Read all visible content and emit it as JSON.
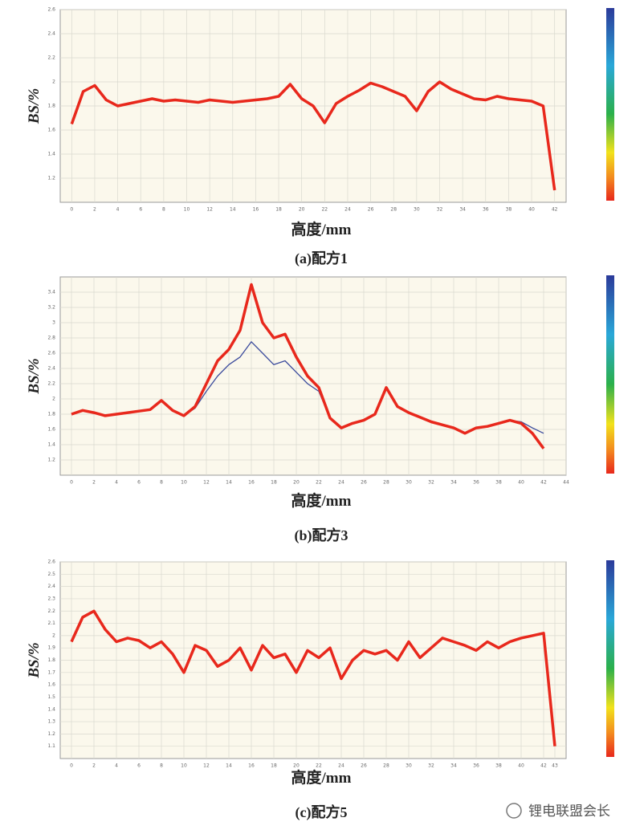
{
  "chart_data": [
    {
      "type": "line",
      "xlabel": "高度/mm",
      "ylabel": "BS/%",
      "caption": "(a)配方1",
      "x": [
        0,
        1,
        2,
        3,
        4,
        5,
        6,
        7,
        8,
        9,
        10,
        11,
        12,
        13,
        14,
        15,
        16,
        17,
        18,
        19,
        20,
        21,
        22,
        23,
        24,
        25,
        26,
        27,
        28,
        29,
        30,
        31,
        32,
        33,
        34,
        35,
        36,
        37,
        38,
        39,
        40,
        41,
        42
      ],
      "series": [
        {
          "color": "#e8281c",
          "values": [
            1.65,
            1.92,
            1.97,
            1.85,
            1.8,
            1.82,
            1.84,
            1.86,
            1.84,
            1.85,
            1.84,
            1.83,
            1.85,
            1.84,
            1.83,
            1.84,
            1.85,
            1.86,
            1.88,
            1.98,
            1.86,
            1.8,
            1.66,
            1.82,
            1.88,
            1.93,
            1.99,
            1.96,
            1.92,
            1.88,
            1.76,
            1.92,
            2.0,
            1.94,
            1.9,
            1.86,
            1.85,
            1.88,
            1.86,
            1.85,
            1.84,
            1.8,
            1.1
          ]
        }
      ],
      "xlim": [
        -1,
        43
      ],
      "ylim": [
        1.0,
        2.6
      ],
      "xticks": [
        0,
        2,
        4,
        6,
        8,
        10,
        12,
        14,
        16,
        18,
        20,
        22,
        24,
        26,
        28,
        30,
        32,
        34,
        36,
        38,
        40,
        42
      ],
      "yticks": [
        1.2,
        1.4,
        1.6,
        1.8,
        2.0,
        2.2,
        2.4,
        2.6
      ],
      "grid": true
    },
    {
      "type": "line",
      "xlabel": "高度/mm",
      "ylabel": "BS/%",
      "caption": "(b)配方3",
      "x": [
        0,
        1,
        2,
        3,
        4,
        5,
        6,
        7,
        8,
        9,
        10,
        11,
        12,
        13,
        14,
        15,
        16,
        17,
        18,
        19,
        20,
        21,
        22,
        23,
        24,
        25,
        26,
        27,
        28,
        29,
        30,
        31,
        32,
        33,
        34,
        35,
        36,
        37,
        38,
        39,
        40,
        41,
        42
      ],
      "series": [
        {
          "color": "#3a4a9c",
          "values": [
            1.8,
            1.85,
            1.82,
            1.78,
            1.8,
            1.82,
            1.84,
            1.86,
            1.98,
            1.85,
            1.78,
            1.88,
            2.1,
            2.3,
            2.45,
            2.55,
            2.75,
            2.6,
            2.45,
            2.5,
            2.35,
            2.2,
            2.1,
            1.75,
            1.62,
            1.68,
            1.72,
            1.8,
            2.15,
            1.9,
            1.82,
            1.76,
            1.7,
            1.66,
            1.62,
            1.55,
            1.62,
            1.64,
            1.68,
            1.72,
            1.7,
            1.62,
            1.55
          ]
        },
        {
          "color": "#e8281c",
          "values": [
            1.8,
            1.85,
            1.82,
            1.78,
            1.8,
            1.82,
            1.84,
            1.86,
            1.98,
            1.85,
            1.78,
            1.9,
            2.2,
            2.5,
            2.65,
            2.9,
            3.5,
            3.0,
            2.8,
            2.85,
            2.55,
            2.3,
            2.15,
            1.75,
            1.62,
            1.68,
            1.72,
            1.8,
            2.15,
            1.9,
            1.82,
            1.76,
            1.7,
            1.66,
            1.62,
            1.55,
            1.62,
            1.64,
            1.68,
            1.72,
            1.68,
            1.55,
            1.35
          ]
        }
      ],
      "xlim": [
        -1,
        44
      ],
      "ylim": [
        1.0,
        3.6
      ],
      "xticks": [
        0,
        2,
        4,
        6,
        8,
        10,
        12,
        14,
        16,
        18,
        20,
        22,
        24,
        26,
        28,
        30,
        32,
        34,
        36,
        38,
        40,
        42,
        44
      ],
      "yticks": [
        1.2,
        1.4,
        1.6,
        1.8,
        2.0,
        2.2,
        2.4,
        2.6,
        2.8,
        3.0,
        3.2,
        3.4
      ],
      "grid": true
    },
    {
      "type": "line",
      "xlabel": "高度/mm",
      "ylabel": "BS/%",
      "caption": "(c)配方5",
      "x": [
        0,
        1,
        2,
        3,
        4,
        5,
        6,
        7,
        8,
        9,
        10,
        11,
        12,
        13,
        14,
        15,
        16,
        17,
        18,
        19,
        20,
        21,
        22,
        23,
        24,
        25,
        26,
        27,
        28,
        29,
        30,
        31,
        32,
        33,
        34,
        35,
        36,
        37,
        38,
        39,
        40,
        41,
        42,
        43
      ],
      "series": [
        {
          "color": "#e8281c",
          "values": [
            1.95,
            2.15,
            2.2,
            2.05,
            1.95,
            1.98,
            1.96,
            1.9,
            1.95,
            1.85,
            1.7,
            1.92,
            1.88,
            1.75,
            1.8,
            1.9,
            1.72,
            1.92,
            1.82,
            1.85,
            1.7,
            1.88,
            1.82,
            1.9,
            1.65,
            1.8,
            1.88,
            1.85,
            1.88,
            1.8,
            1.95,
            1.82,
            1.9,
            1.98,
            1.95,
            1.92,
            1.88,
            1.95,
            1.9,
            1.95,
            1.98,
            2.0,
            2.02,
            1.1
          ]
        }
      ],
      "xlim": [
        -1,
        44
      ],
      "ylim": [
        1.0,
        2.6
      ],
      "xticks": [
        0,
        2,
        4,
        6,
        8,
        10,
        12,
        14,
        16,
        18,
        20,
        22,
        24,
        26,
        28,
        30,
        32,
        34,
        36,
        38,
        40,
        42,
        43
      ],
      "yticks": [
        1.1,
        1.2,
        1.3,
        1.4,
        1.5,
        1.6,
        1.7,
        1.8,
        1.9,
        2.0,
        2.1,
        2.2,
        2.3,
        2.4,
        2.5,
        2.6
      ],
      "grid": true
    }
  ],
  "watermark": "锂电联盟会长"
}
